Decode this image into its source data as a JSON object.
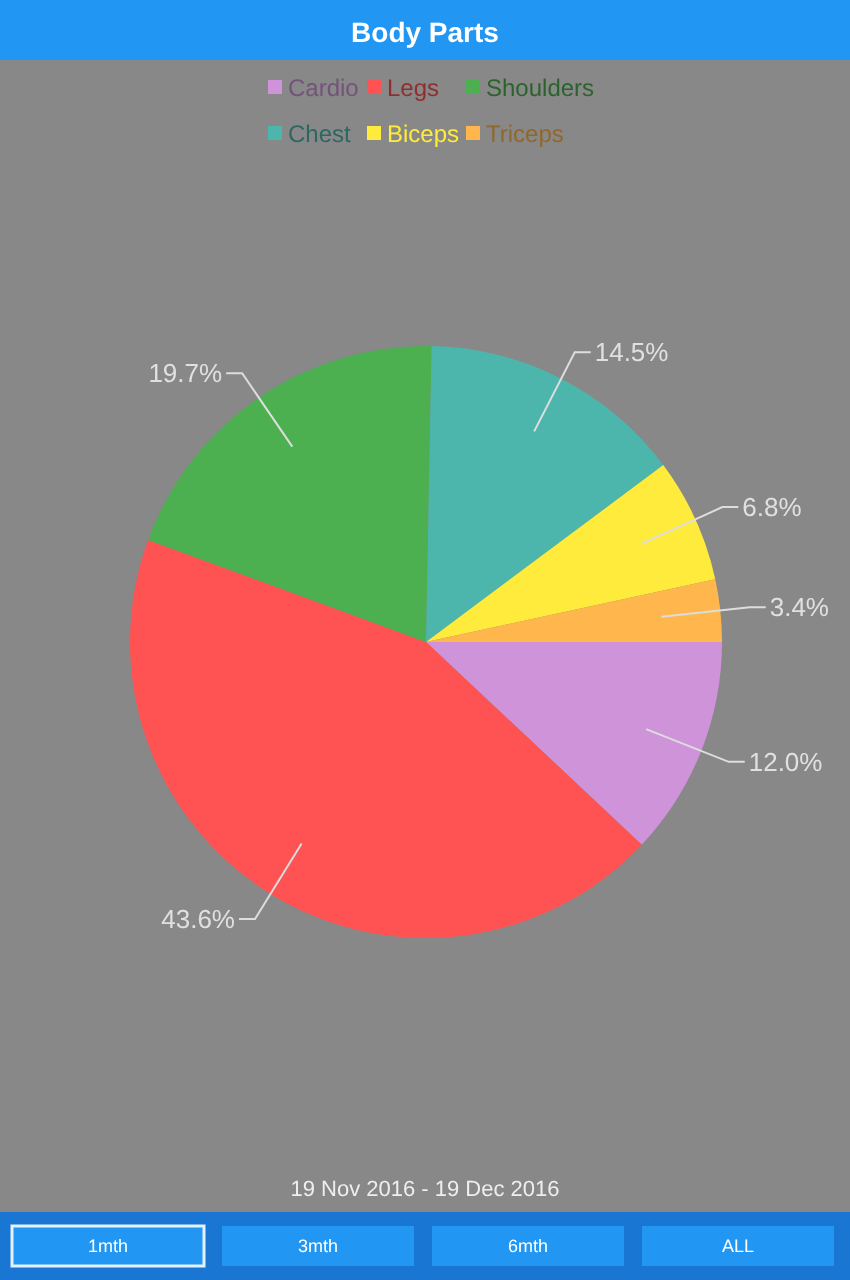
{
  "chart_data": {
    "type": "pie",
    "title": "Body Parts",
    "categories": [
      "Cardio",
      "Legs",
      "Shoulders",
      "Chest",
      "Biceps",
      "Triceps"
    ],
    "values": [
      12.0,
      43.6,
      19.7,
      14.5,
      6.8,
      3.4
    ],
    "colors": [
      "#ce93d8",
      "#ff5252",
      "#4caf50",
      "#4db6ac",
      "#ffeb3b",
      "#ffb74d"
    ],
    "value_labels": [
      "12.0%",
      "43.6%",
      "19.7%",
      "14.5%",
      "6.8%",
      "3.4%"
    ],
    "legend": "top",
    "annotations": [
      "19 Nov 2016 - 19 Dec 2016",
      "1mth",
      "3mth",
      "6mth",
      "ALL"
    ]
  }
}
